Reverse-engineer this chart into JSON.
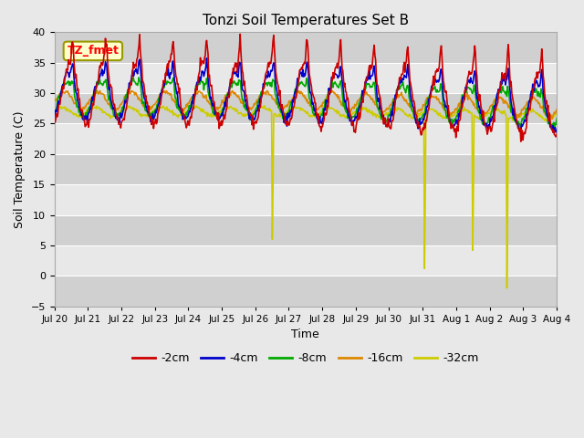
{
  "title": "Tonzi Soil Temperatures Set B",
  "xlabel": "Time",
  "ylabel": "Soil Temperature (C)",
  "ylim": [
    -5,
    40
  ],
  "yticks": [
    -5,
    0,
    5,
    10,
    15,
    20,
    25,
    30,
    35,
    40
  ],
  "colors": {
    "-2cm": "#cc0000",
    "-4cm": "#0000cc",
    "-8cm": "#00aa00",
    "-16cm": "#dd8800",
    "-32cm": "#cccc00"
  },
  "legend_label": "TZ_fmet",
  "legend_label_bg": "#ffffcc",
  "legend_label_border": "#999900",
  "bg_color": "#e8e8e8",
  "line_width": 1.2,
  "x_labels": [
    "Jul 20",
    "Jul 21",
    "Jul 22",
    "Jul 23",
    "Jul 24",
    "Jul 25",
    "Jul 26",
    "Jul 27",
    "Jul 28",
    "Jul 29",
    "Jul 30",
    "Jul 31",
    "Aug 1",
    "Aug 2",
    "Aug 3",
    "Aug 4"
  ],
  "n_days": 16
}
